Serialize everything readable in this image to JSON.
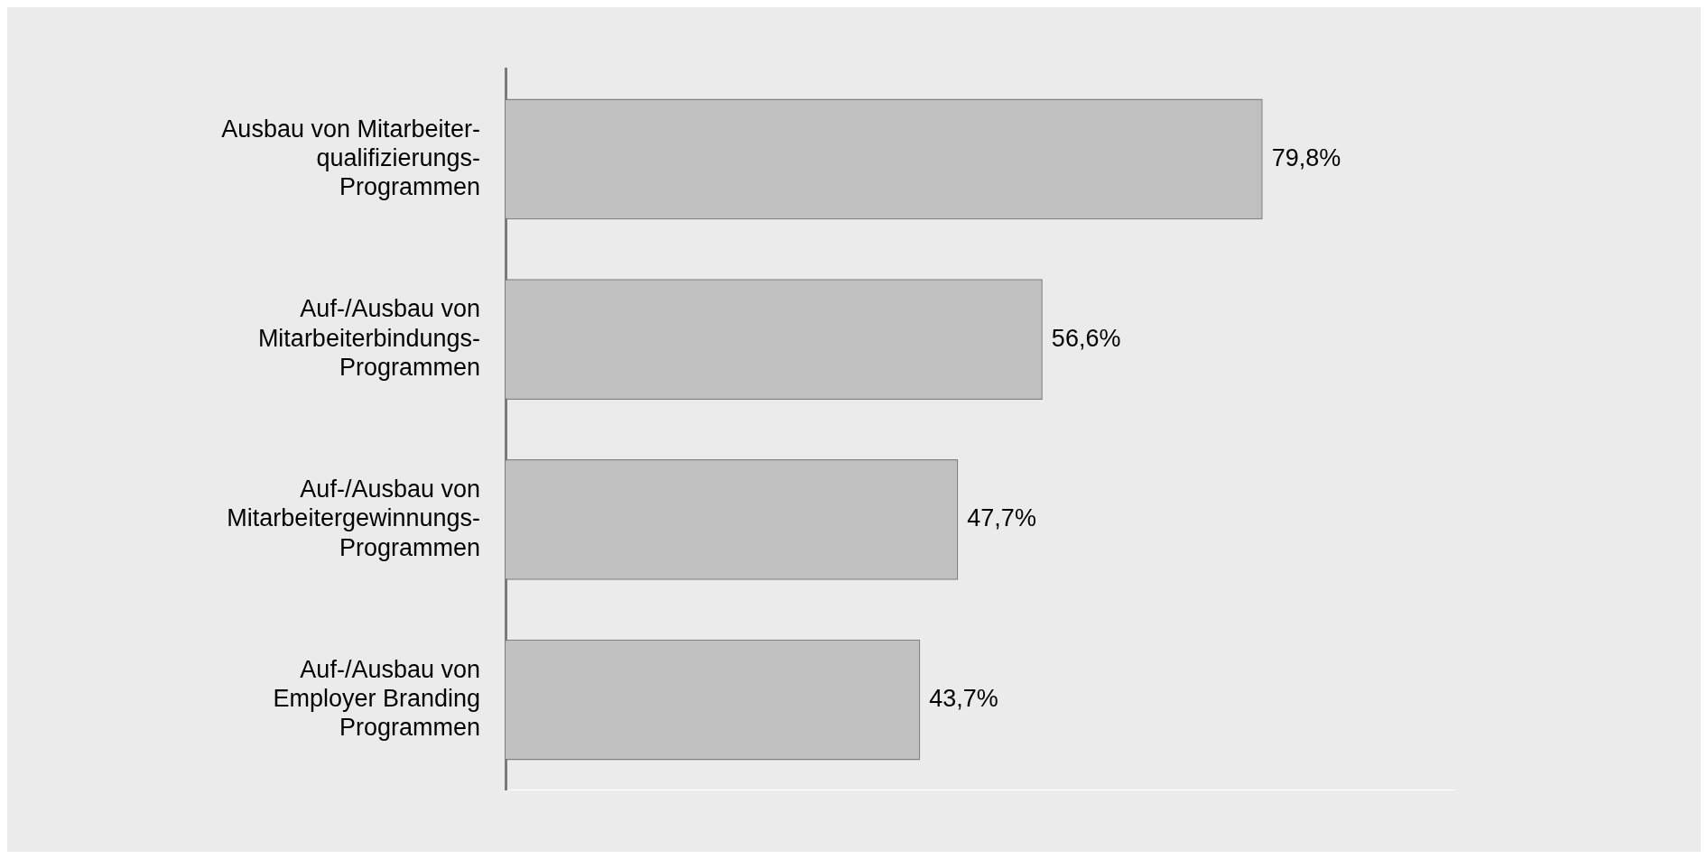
{
  "chart_data": {
    "type": "bar",
    "orientation": "horizontal",
    "categories": [
      "Ausbau von Mitarbeiter-\nqualifizierungs-\nProgrammen",
      "Auf-/Ausbau von\nMitarbeiterbindungs-\nProgrammen",
      "Auf-/Ausbau von\nMitarbeitergewinnungs-\nProgrammen",
      "Auf-/Ausbau von\nEmployer Branding\nProgrammen"
    ],
    "values": [
      79.8,
      56.6,
      47.7,
      43.7
    ],
    "value_labels": [
      "79,8%",
      "56,6%",
      "47,7%",
      "43,7%"
    ],
    "color": "#c0c0c0",
    "xlim": [
      0,
      100
    ],
    "tick_labels": "y",
    "grid": false,
    "legend": false
  }
}
